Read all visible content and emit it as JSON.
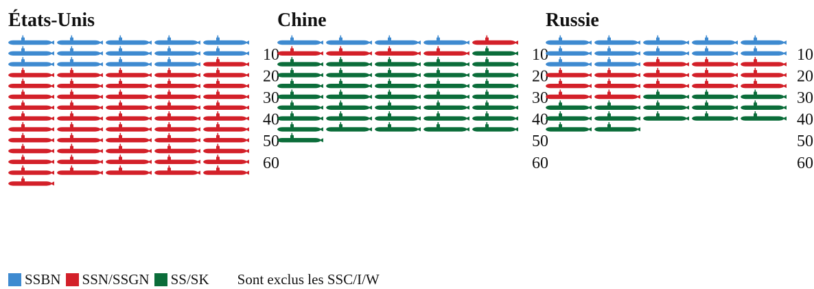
{
  "chart_data": {
    "type": "pictograph",
    "unit": "submarine",
    "panels": [
      {
        "title": "États-Unis",
        "counts": {
          "SSBN": 14,
          "SSN/SSGN": 52,
          "SS/SK": 0
        }
      },
      {
        "title": "Chine",
        "counts": {
          "SSBN": 4,
          "SSN/SSGN": 5,
          "SS/SK": 37
        }
      },
      {
        "title": "Russie",
        "counts": {
          "SSBN": 12,
          "SSN/SSGN": 15,
          "SS/SK": 15
        }
      }
    ],
    "per_row": 5,
    "y_ticks": [
      10,
      20,
      30,
      40,
      50,
      60
    ],
    "order": [
      "SSBN",
      "SSN/SSGN",
      "SS/SK"
    ],
    "colors": {
      "SSBN": "#3e8ad0",
      "SSN/SSGN": "#d32029",
      "SS/SK": "#0b6d3a"
    },
    "legend": [
      {
        "label": "SSBN",
        "color": "#3e8ad0"
      },
      {
        "label": "SSN/SSGN",
        "color": "#d32029"
      },
      {
        "label": "SS/SK",
        "color": "#0b6d3a"
      }
    ],
    "note": "Sont exclus les SSC/I/W"
  }
}
